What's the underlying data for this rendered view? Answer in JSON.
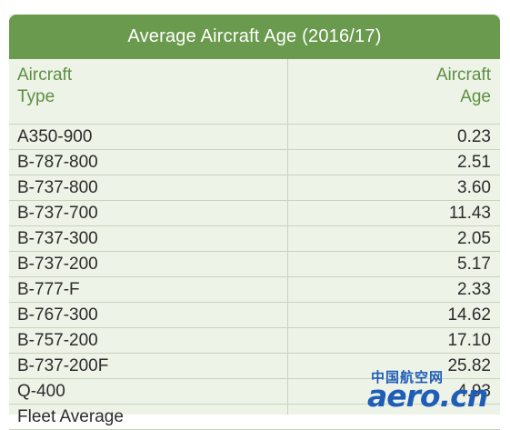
{
  "table": {
    "title": "Average Aircraft Age (2016/17)",
    "header": {
      "type_line1": "Aircraft",
      "type_line2": "Type",
      "age_line1": "Aircraft",
      "age_line2": "Age"
    },
    "rows": [
      {
        "type": "A350-900",
        "age": "0.23"
      },
      {
        "type": "B-787-800",
        "age": "2.51"
      },
      {
        "type": "B-737-800",
        "age": "3.60"
      },
      {
        "type": "B-737-700",
        "age": "11.43"
      },
      {
        "type": "B-737-300",
        "age": "2.05"
      },
      {
        "type": "B-737-200",
        "age": "5.17"
      },
      {
        "type": "B-777-F",
        "age": "2.33"
      },
      {
        "type": "B-767-300",
        "age": "14.62"
      },
      {
        "type": "B-757-200",
        "age": "17.10"
      },
      {
        "type": "B-737-200F",
        "age": "25.82"
      },
      {
        "type": "Q-400",
        "age": "4.93"
      },
      {
        "type": "Fleet Average",
        "age": ""
      }
    ]
  },
  "watermark": {
    "cn": "中国航空网",
    "en": "aero.cn"
  }
}
